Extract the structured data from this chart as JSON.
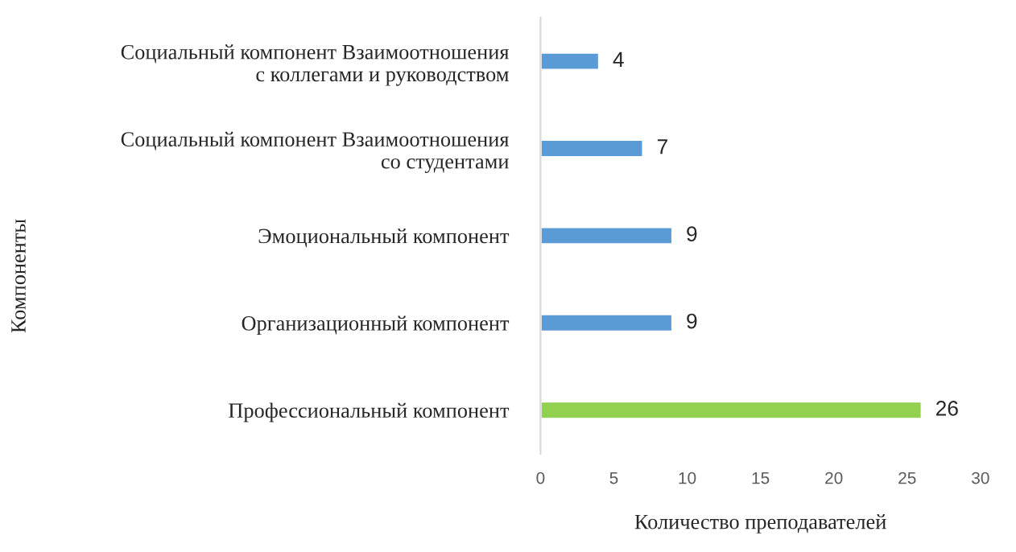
{
  "chart_data": {
    "type": "bar",
    "orientation": "horizontal",
    "xlabel": "Количество преподавателей",
    "ylabel": "Компоненты",
    "categories": [
      "Социальный компонент Взаимоотношения\nс коллегами и руководством",
      "Социальный компонент Взаимоотношения\nсо студентами",
      "Эмоциональный компонент",
      "Организационный компонент",
      "Профессиональный компонент"
    ],
    "values": [
      4,
      7,
      9,
      9,
      26
    ],
    "colors": [
      "#5b9bd5",
      "#5b9bd5",
      "#5b9bd5",
      "#5b9bd5",
      "#92d050"
    ],
    "xlim": [
      0,
      30
    ],
    "xticks": [
      0,
      5,
      10,
      15,
      20,
      25,
      30
    ],
    "data_labels": true,
    "grid": false,
    "legend": false
  }
}
